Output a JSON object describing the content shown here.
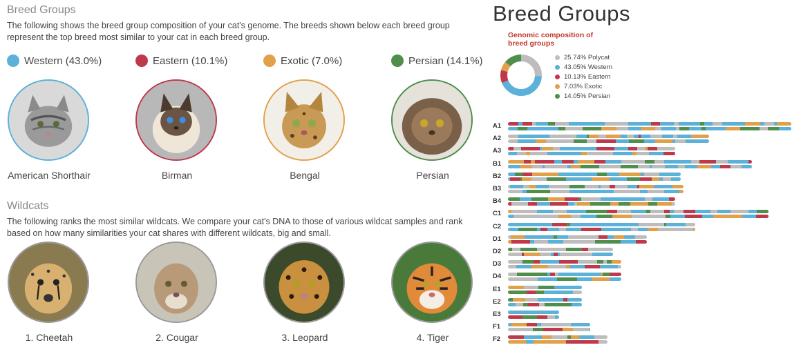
{
  "breed_groups": {
    "title": "Breed Groups",
    "description": "The following shows the breed group composition of your cat's genome. The breeds shown below each breed group represent the top breed most similar to your cat in each breed group.",
    "legend": [
      {
        "label": "Western (43.0%)",
        "color": "#5bb1d8"
      },
      {
        "label": "Eastern (10.1%)",
        "color": "#c0394b"
      },
      {
        "label": "Exotic (7.0%)",
        "color": "#e1a14b"
      },
      {
        "label": "Persian (14.1%)",
        "color": "#4f8e4b"
      }
    ],
    "breeds": [
      {
        "name": "American Shorthair",
        "border": "#5bb1d8",
        "icon": "american-shorthair-photo"
      },
      {
        "name": "Birman",
        "border": "#c0394b",
        "icon": "birman-photo"
      },
      {
        "name": "Bengal",
        "border": "#e1a14b",
        "icon": "bengal-photo"
      },
      {
        "name": "Persian",
        "border": "#4f8e4b",
        "icon": "persian-photo"
      }
    ]
  },
  "wildcats": {
    "title": "Wildcats",
    "description": "The following ranks the most similar wildcats. We compare your cat's DNA to those of various wildcat samples and rank based on how many similarities your cat shares with different wildcats, big and small.",
    "items": [
      {
        "name": "1. Cheetah",
        "icon": "cheetah-photo"
      },
      {
        "name": "2. Cougar",
        "icon": "cougar-photo"
      },
      {
        "name": "3. Leopard",
        "icon": "leopard-photo"
      },
      {
        "name": "4. Tiger",
        "icon": "tiger-photo"
      }
    ]
  },
  "panel": {
    "title": "Breed Groups",
    "donut_title": "Genomic composition of breed groups",
    "donut_legend": [
      {
        "label": "25.74% Polycat",
        "value": 25.74,
        "color": "#bdbdbd"
      },
      {
        "label": "43.05% Western",
        "value": 43.05,
        "color": "#5bb1d8"
      },
      {
        "label": "10.13% Eastern",
        "value": 10.13,
        "color": "#c0394b"
      },
      {
        "label": "7.03% Exotic",
        "value": 7.03,
        "color": "#e1a14b"
      },
      {
        "label": "14.05% Persian",
        "value": 14.05,
        "color": "#4f8e4b"
      }
    ],
    "chromosomes": [
      {
        "label": "A1",
        "length": 1.0
      },
      {
        "label": "A2",
        "length": 0.71
      },
      {
        "label": "A3",
        "length": 0.59
      },
      {
        "label": "B1",
        "length": 0.86
      },
      {
        "label": "B2",
        "length": 0.61
      },
      {
        "label": "B3",
        "length": 0.62
      },
      {
        "label": "B4",
        "length": 0.59
      },
      {
        "label": "C1",
        "length": 0.92
      },
      {
        "label": "C2",
        "length": 0.66
      },
      {
        "label": "D1",
        "length": 0.49
      },
      {
        "label": "D2",
        "length": 0.37
      },
      {
        "label": "D3",
        "length": 0.4
      },
      {
        "label": "D4",
        "length": 0.4
      },
      {
        "label": "E1",
        "length": 0.26
      },
      {
        "label": "E2",
        "length": 0.26
      },
      {
        "label": "E3",
        "length": 0.18
      },
      {
        "label": "F1",
        "length": 0.29
      },
      {
        "label": "F2",
        "length": 0.35
      }
    ]
  }
}
